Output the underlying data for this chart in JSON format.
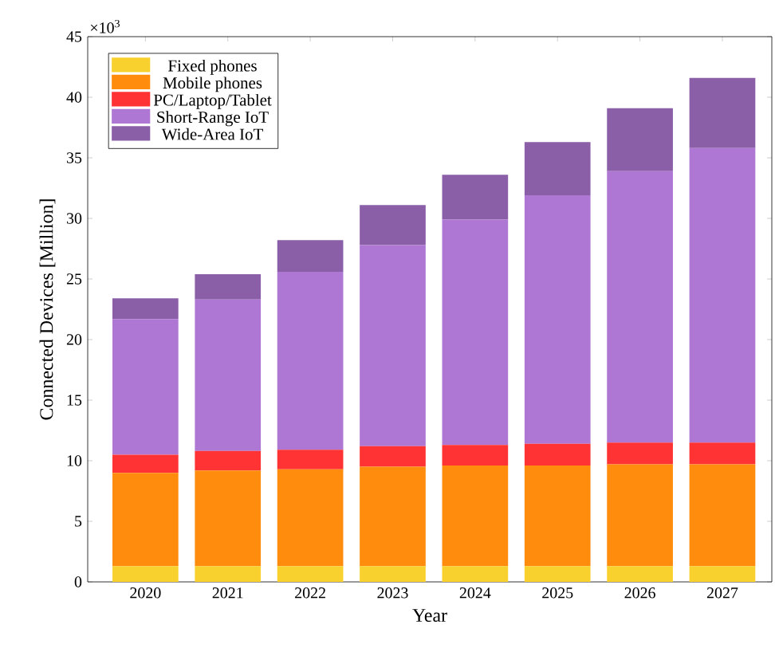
{
  "chart_data": {
    "type": "bar",
    "stacked": true,
    "xlabel": "Year",
    "ylabel": "Connected Devices [Million]",
    "annotations": [
      "×10$^{3}$"
    ],
    "categories": [
      "2020",
      "2021",
      "2022",
      "2023",
      "2024",
      "2025",
      "2026",
      "2027"
    ],
    "series": [
      {
        "name": "Fixed phones",
        "color": "#f9d12e",
        "values": [
          1.3,
          1.3,
          1.3,
          1.3,
          1.3,
          1.3,
          1.3,
          1.3
        ]
      },
      {
        "name": "Mobile phones",
        "color": "#ff8c0d",
        "values": [
          7.7,
          7.9,
          8.0,
          8.2,
          8.3,
          8.3,
          8.4,
          8.4
        ]
      },
      {
        "name": "PC/Laptop/Tablet",
        "color": "#ff3333",
        "values": [
          1.5,
          1.6,
          1.6,
          1.7,
          1.7,
          1.8,
          1.8,
          1.8
        ]
      },
      {
        "name": "Short-Range IoT",
        "color": "#ae77d3",
        "values": [
          11.2,
          12.5,
          14.7,
          16.6,
          18.6,
          20.5,
          22.4,
          24.3
        ]
      },
      {
        "name": "Wide-Area IoT",
        "color": "#8b5fa8",
        "values": [
          1.7,
          2.1,
          2.6,
          3.3,
          3.7,
          4.4,
          5.2,
          5.8
        ]
      }
    ],
    "ylim": [
      0,
      45
    ],
    "yticks": [
      0,
      5,
      10,
      15,
      20,
      25,
      30,
      35,
      40,
      45
    ],
    "legend": "top left"
  }
}
